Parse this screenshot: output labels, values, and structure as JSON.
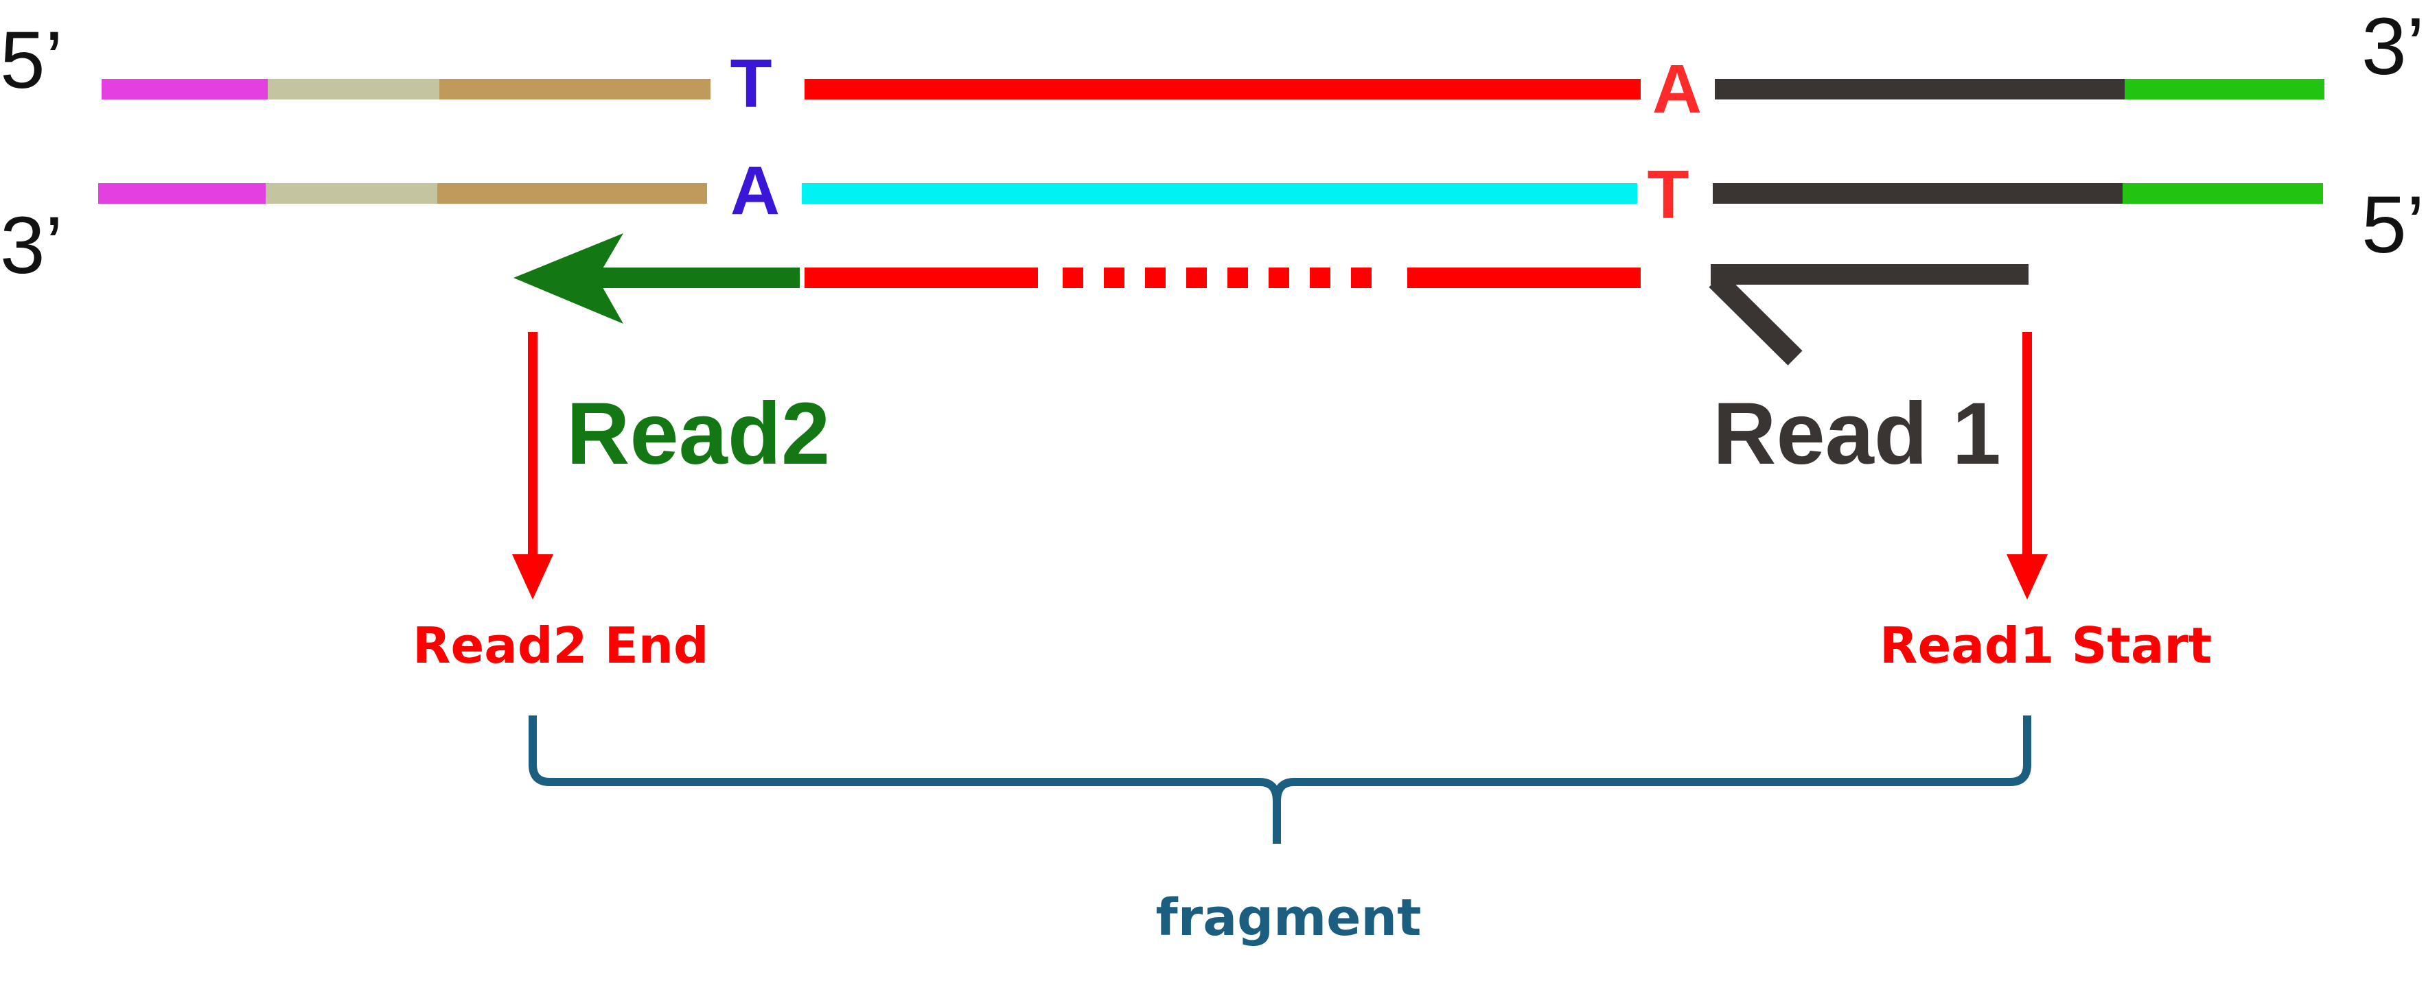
{
  "labels": {
    "top_left_end": "5’",
    "top_right_end": "3’",
    "bottom_left_end": "3’",
    "bottom_right_end": "5’",
    "top_base_left": "T",
    "top_base_right": "A",
    "bottom_base_left": "A",
    "bottom_base_right": "T",
    "read2": "Read2",
    "read1": "Read 1",
    "read2_end": "Read2 End",
    "read1_start": "Read1 Start",
    "fragment": "fragment"
  },
  "colors": {
    "adapter_magenta": "#e43fe0",
    "adapter_khaki": "#c4c4a0",
    "adapter_tan": "#bf9a5c",
    "insert_top": "#ff0000",
    "insert_bottom": "#00f2f2",
    "adapter_dark": "#3a3532",
    "adapter_green": "#22c311",
    "base_blue": "#3b16d6",
    "base_red": "#ff2a2a",
    "read2_green": "#137813",
    "read1_dark": "#3a3532",
    "position_red": "#ff0000",
    "fragment_blue": "#1b5e80"
  }
}
